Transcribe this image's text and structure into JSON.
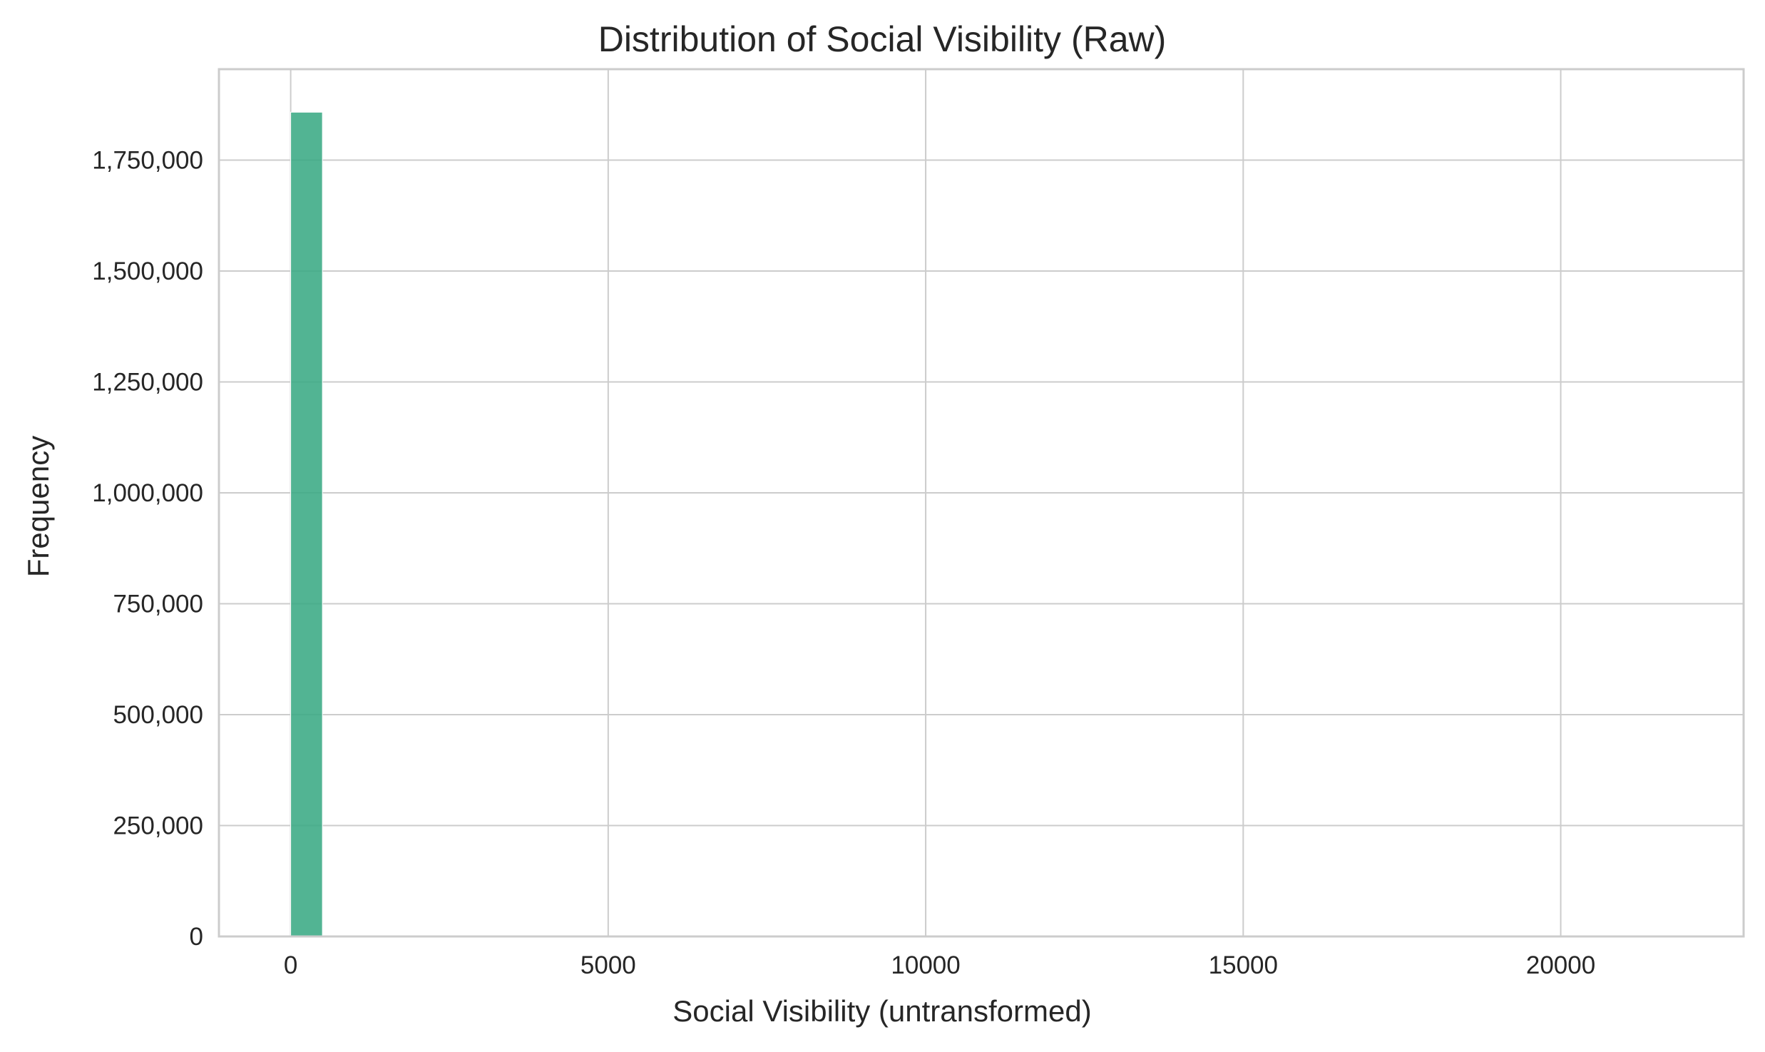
{
  "chart_data": {
    "type": "bar",
    "title": "Distribution of Social Visibility (Raw)",
    "xlabel": "Social Visibility (untransformed)",
    "ylabel": "Frequency",
    "xlim": [
      -1130,
      22880
    ],
    "ylim": [
      0,
      1955000
    ],
    "x_ticks": [
      0,
      5000,
      10000,
      15000,
      20000
    ],
    "x_tick_labels": [
      "0",
      "5000",
      "10000",
      "15000",
      "20000"
    ],
    "y_ticks": [
      0,
      250000,
      500000,
      750000,
      1000000,
      1250000,
      1500000,
      1750000
    ],
    "y_tick_labels": [
      "0",
      "250,000",
      "500,000",
      "750,000",
      "1,000,000",
      "1,250,000",
      "1,500,000",
      "1,750,000"
    ],
    "bars": [
      {
        "x_start": 0,
        "x_end": 500,
        "value": 1858000
      }
    ],
    "bar_color": "#3aaa84",
    "grid": true,
    "legend": "none"
  }
}
